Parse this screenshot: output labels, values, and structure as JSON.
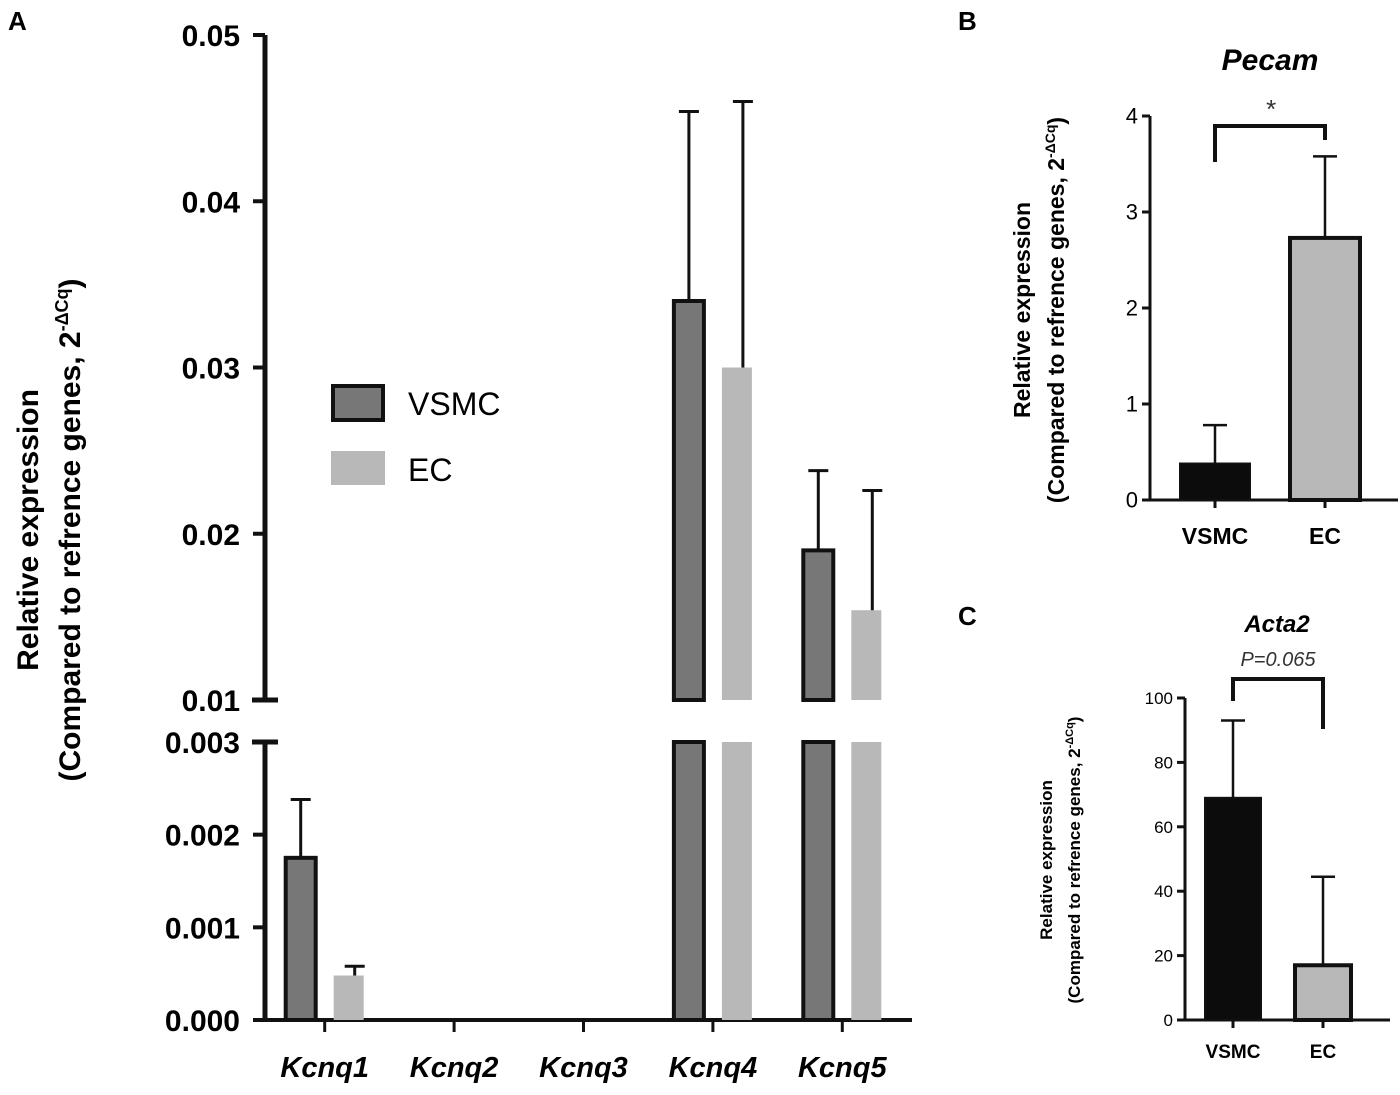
{
  "figure": {
    "panel_labels": [
      "A",
      "B",
      "C"
    ]
  },
  "colors": {
    "vsmc_fill": "#777777",
    "vsmc_stroke": "#111111",
    "ec_fill": "#b8b8b8",
    "vsmc_solid": "#0c0c0c",
    "axis": "#111111"
  },
  "chart_data": [
    {
      "panel": "A",
      "type": "bar",
      "title": "",
      "ylabel_line1": "Relative expression",
      "ylabel_line2": "(Compared to refrence genes, 2",
      "ylabel_sup": "-ΔCq",
      "ylabel_close": ")",
      "categories": [
        "Kcnq1",
        "Kcnq2",
        "Kcnq3",
        "Kcnq4",
        "Kcnq5"
      ],
      "series": [
        {
          "name": "VSMC",
          "values": [
            0.00175,
            0,
            0,
            0.034,
            0.019
          ],
          "errors": [
            0.00063,
            0,
            0,
            0.0114,
            0.0048
          ]
        },
        {
          "name": "EC",
          "values": [
            0.00048,
            0,
            0,
            0.03,
            0.0154
          ],
          "errors": [
            0.0001,
            0,
            0,
            0.016,
            0.0072
          ]
        }
      ],
      "axis_break": true,
      "lower_ylim": [
        0,
        0.003
      ],
      "lower_ticks": [
        "0.000",
        "0.001",
        "0.002",
        "0.003"
      ],
      "upper_ylim": [
        0.01,
        0.05
      ],
      "upper_ticks": [
        "0.01",
        "0.02",
        "0.03",
        "0.04",
        "0.05"
      ],
      "legend": [
        "VSMC",
        "EC"
      ],
      "legend_position": "center-left"
    },
    {
      "panel": "B",
      "type": "bar",
      "title": "Pecam",
      "ylabel_line1": "Relative expression",
      "ylabel_line2": "(Compared to refrence genes, 2",
      "ylabel_sup": "-ΔCq",
      "ylabel_close": ")",
      "categories": [
        "VSMC",
        "EC"
      ],
      "values": [
        0.38,
        2.73
      ],
      "errors": [
        0.4,
        0.85
      ],
      "ylim": [
        0,
        4
      ],
      "yticks": [
        "0",
        "1",
        "2",
        "3",
        "4"
      ],
      "significance": "*"
    },
    {
      "panel": "C",
      "type": "bar",
      "title": "Acta2",
      "ylabel_line1": "Relative expression",
      "ylabel_line2": "(Compared to refrence genes, 2",
      "ylabel_sup": "-ΔCq",
      "ylabel_close": ")",
      "categories": [
        "VSMC",
        "EC"
      ],
      "values": [
        69,
        17
      ],
      "errors": [
        24,
        27.5
      ],
      "ylim": [
        0,
        100
      ],
      "yticks": [
        "0",
        "20",
        "40",
        "60",
        "80",
        "100"
      ],
      "significance": "P=0.065"
    }
  ]
}
